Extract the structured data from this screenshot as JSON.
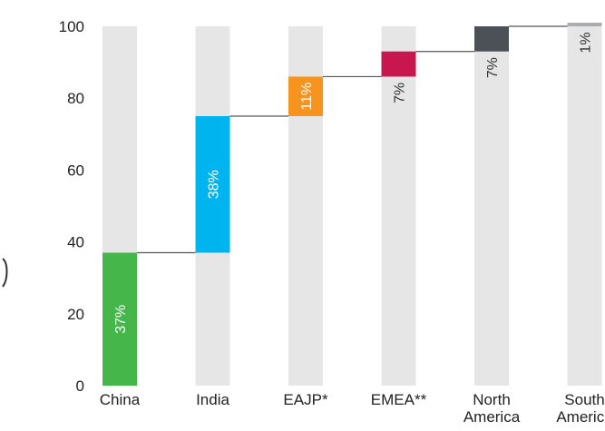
{
  "chart_data": {
    "type": "bar",
    "subtype": "waterfall",
    "categories": [
      [
        "China"
      ],
      [
        "India"
      ],
      [
        "EAJP*"
      ],
      [
        "EMEA**"
      ],
      [
        "North",
        "America"
      ],
      [
        "South",
        "America"
      ]
    ],
    "values": [
      37,
      38,
      11,
      7,
      7,
      1
    ],
    "data_labels": [
      "37%",
      "38%",
      "11%",
      "7%",
      "7%",
      "1%"
    ],
    "colors": [
      "#45b649",
      "#00b5ef",
      "#f7941d",
      "#c8174f",
      "#4b5157",
      "#a9adb0"
    ],
    "label_colors": [
      "#ffffff",
      "#ffffff",
      "#ffffff",
      "#333333",
      "#333333",
      "#333333"
    ],
    "background_color": "#e6e6e7",
    "connector_color": "#555555",
    "ylim": [
      0,
      100
    ],
    "yticks": [
      0,
      20,
      40,
      60,
      80,
      100
    ],
    "grid": false,
    "title": "",
    "xlabel": "",
    "ylabel": ""
  }
}
